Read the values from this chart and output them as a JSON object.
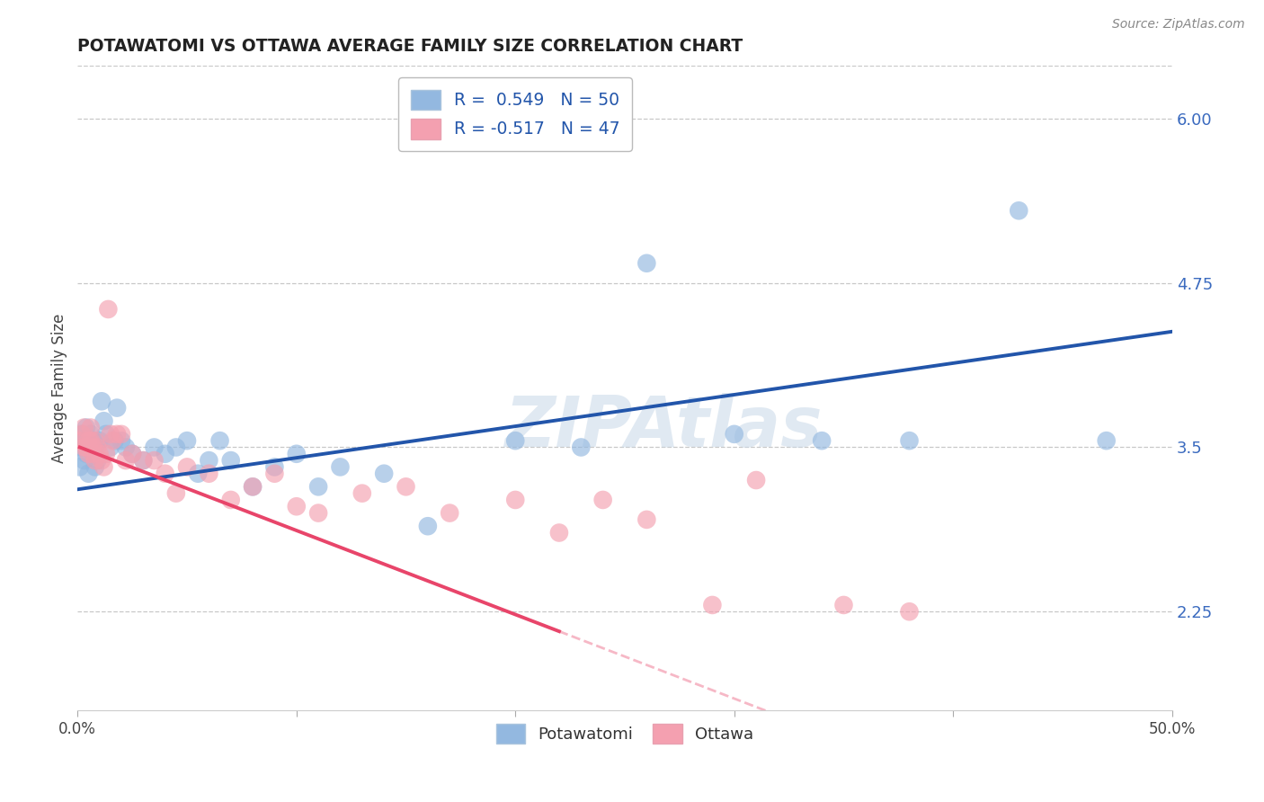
{
  "title": "POTAWATOMI VS OTTAWA AVERAGE FAMILY SIZE CORRELATION CHART",
  "source": "Source: ZipAtlas.com",
  "xlabel": "",
  "ylabel": "Average Family Size",
  "xlim": [
    0.0,
    0.5
  ],
  "ylim": [
    1.5,
    6.4
  ],
  "xticks": [
    0.0,
    0.1,
    0.2,
    0.3,
    0.4,
    0.5
  ],
  "xticklabels": [
    "0.0%",
    "",
    "",
    "",
    "",
    "50.0%"
  ],
  "yticks_right": [
    2.25,
    3.5,
    4.75,
    6.0
  ],
  "background_color": "#ffffff",
  "grid_color": "#c8c8c8",
  "watermark": "ZIPAtlas",
  "blue_scatter_color": "#93b8e0",
  "pink_scatter_color": "#f4a0b0",
  "blue_line_color": "#2255aa",
  "pink_line_color": "#e8456a",
  "r_blue": 0.549,
  "n_blue": 50,
  "r_pink": -0.517,
  "n_pink": 47,
  "potawatomi_x": [
    0.001,
    0.002,
    0.002,
    0.003,
    0.003,
    0.004,
    0.004,
    0.005,
    0.005,
    0.006,
    0.006,
    0.007,
    0.007,
    0.008,
    0.008,
    0.009,
    0.01,
    0.011,
    0.012,
    0.013,
    0.015,
    0.017,
    0.018,
    0.02,
    0.022,
    0.025,
    0.03,
    0.035,
    0.04,
    0.045,
    0.05,
    0.055,
    0.06,
    0.065,
    0.07,
    0.08,
    0.09,
    0.1,
    0.11,
    0.12,
    0.14,
    0.16,
    0.2,
    0.23,
    0.26,
    0.3,
    0.34,
    0.38,
    0.43,
    0.47
  ],
  "potawatomi_y": [
    3.35,
    3.5,
    3.6,
    3.4,
    3.55,
    3.45,
    3.65,
    3.3,
    3.55,
    3.5,
    3.6,
    3.45,
    3.55,
    3.35,
    3.5,
    3.4,
    3.55,
    3.85,
    3.7,
    3.6,
    3.5,
    3.55,
    3.8,
    3.55,
    3.5,
    3.45,
    3.4,
    3.5,
    3.45,
    3.5,
    3.55,
    3.3,
    3.4,
    3.55,
    3.4,
    3.2,
    3.35,
    3.45,
    3.2,
    3.35,
    3.3,
    2.9,
    3.55,
    3.5,
    4.9,
    3.6,
    3.55,
    3.55,
    5.3,
    3.55
  ],
  "ottawa_x": [
    0.001,
    0.002,
    0.003,
    0.003,
    0.004,
    0.005,
    0.005,
    0.006,
    0.006,
    0.007,
    0.007,
    0.008,
    0.008,
    0.009,
    0.01,
    0.011,
    0.012,
    0.013,
    0.014,
    0.015,
    0.016,
    0.018,
    0.02,
    0.022,
    0.025,
    0.03,
    0.035,
    0.04,
    0.045,
    0.05,
    0.06,
    0.07,
    0.08,
    0.09,
    0.1,
    0.11,
    0.13,
    0.15,
    0.17,
    0.2,
    0.22,
    0.24,
    0.26,
    0.29,
    0.31,
    0.35,
    0.38
  ],
  "ottawa_y": [
    3.55,
    3.6,
    3.5,
    3.65,
    3.5,
    3.45,
    3.55,
    3.55,
    3.65,
    3.45,
    3.5,
    3.4,
    3.55,
    3.5,
    3.45,
    3.4,
    3.35,
    3.45,
    4.55,
    3.6,
    3.55,
    3.6,
    3.6,
    3.4,
    3.45,
    3.4,
    3.4,
    3.3,
    3.15,
    3.35,
    3.3,
    3.1,
    3.2,
    3.3,
    3.05,
    3.0,
    3.15,
    3.2,
    3.0,
    3.1,
    2.85,
    3.1,
    2.95,
    2.3,
    3.25,
    2.3,
    2.25
  ]
}
